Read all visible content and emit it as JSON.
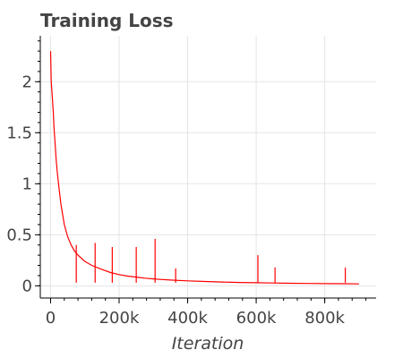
{
  "chart_data": {
    "type": "line",
    "title": "Training Loss",
    "xlabel": "Iteration",
    "ylabel": "",
    "xlim": [
      -30000,
      950000
    ],
    "ylim": [
      -0.12,
      2.45
    ],
    "x_ticks": [
      0,
      200000,
      400000,
      600000,
      800000
    ],
    "x_tick_labels": [
      "0",
      "200k",
      "400k",
      "600k",
      "800k"
    ],
    "y_ticks": [
      0,
      0.5,
      1,
      1.5,
      2
    ],
    "y_tick_labels": [
      "0",
      "0.5",
      "1",
      "1.5",
      "2"
    ],
    "grid": true,
    "legend": "none",
    "series": [
      {
        "color": "#ff0000",
        "x": [
          0,
          2000,
          5000,
          8000,
          10000,
          13000,
          16000,
          20000,
          25000,
          30000,
          35000,
          40000,
          50000,
          60000,
          70000,
          80000,
          100000,
          120000,
          150000,
          175000,
          200000,
          225000,
          250000,
          275000,
          300000,
          325000,
          350000,
          400000,
          450000,
          500000,
          550000,
          600000,
          650000,
          700000,
          750000,
          800000,
          850000,
          900000
        ],
        "y": [
          2.3,
          2.0,
          1.85,
          1.7,
          1.55,
          1.4,
          1.25,
          1.1,
          0.95,
          0.8,
          0.7,
          0.6,
          0.48,
          0.4,
          0.34,
          0.3,
          0.24,
          0.2,
          0.16,
          0.13,
          0.11,
          0.095,
          0.085,
          0.075,
          0.068,
          0.062,
          0.056,
          0.048,
          0.042,
          0.037,
          0.033,
          0.03,
          0.027,
          0.025,
          0.023,
          0.021,
          0.02,
          0.019
        ]
      }
    ],
    "spikes": [
      {
        "x": 75000,
        "y": 0.4
      },
      {
        "x": 130000,
        "y": 0.42
      },
      {
        "x": 180000,
        "y": 0.38
      },
      {
        "x": 250000,
        "y": 0.38
      },
      {
        "x": 305000,
        "y": 0.46
      },
      {
        "x": 365000,
        "y": 0.17
      },
      {
        "x": 605000,
        "y": 0.3
      },
      {
        "x": 655000,
        "y": 0.18
      },
      {
        "x": 860000,
        "y": 0.18
      }
    ]
  }
}
